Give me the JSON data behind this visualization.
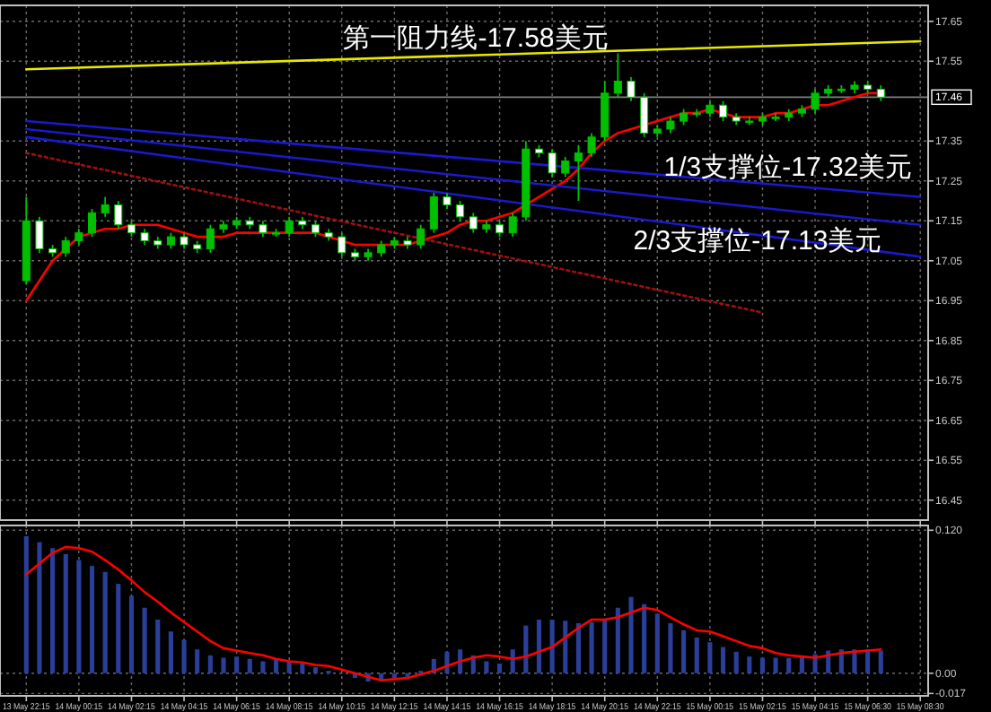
{
  "chart_data": [
    {
      "type": "candlestick",
      "categories": [
        "13 May 22:15",
        null,
        null,
        null,
        "14 May 00:15",
        null,
        null,
        null,
        "14 May 02:15",
        null,
        null,
        null,
        "14 May 04:15",
        null,
        null,
        null,
        "14 May 06:15",
        null,
        null,
        null,
        "14 May 08:15",
        null,
        null,
        null,
        "14 May 10:15",
        null,
        null,
        null,
        "14 May 12:15",
        null,
        null,
        null,
        "14 May 14:15",
        null,
        null,
        null,
        "14 May 16:15",
        null,
        null,
        null,
        "14 May 18:15",
        null,
        null,
        null,
        "14 May 20:15",
        null,
        null,
        null,
        "14 May 22:15",
        null,
        null,
        null,
        "15 May 00:15",
        null,
        null,
        null,
        "15 May 02:15",
        null,
        null,
        null,
        "15 May 04:15",
        null,
        null,
        null,
        "15 May 06:30",
        null,
        null,
        null,
        "15 May 08:30"
      ],
      "ohlc": [
        [
          17.0,
          17.21,
          16.99,
          17.15
        ],
        [
          17.15,
          17.16,
          17.07,
          17.08
        ],
        [
          17.08,
          17.09,
          17.06,
          17.07
        ],
        [
          17.07,
          17.11,
          17.06,
          17.1
        ],
        [
          17.1,
          17.13,
          17.09,
          17.12
        ],
        [
          17.12,
          17.18,
          17.11,
          17.17
        ],
        [
          17.17,
          17.21,
          17.16,
          17.19
        ],
        [
          17.19,
          17.2,
          17.13,
          17.14
        ],
        [
          17.14,
          17.15,
          17.11,
          17.12
        ],
        [
          17.12,
          17.13,
          17.09,
          17.1
        ],
        [
          17.1,
          17.11,
          17.08,
          17.09
        ],
        [
          17.09,
          17.12,
          17.08,
          17.11
        ],
        [
          17.11,
          17.12,
          17.08,
          17.09
        ],
        [
          17.09,
          17.1,
          17.07,
          17.08
        ],
        [
          17.08,
          17.14,
          17.07,
          17.13
        ],
        [
          17.13,
          17.15,
          17.12,
          17.14
        ],
        [
          17.14,
          17.16,
          17.13,
          17.15
        ],
        [
          17.15,
          17.16,
          17.13,
          17.14
        ],
        [
          17.14,
          17.15,
          17.11,
          17.12
        ],
        [
          17.12,
          17.13,
          17.11,
          17.12
        ],
        [
          17.12,
          17.16,
          17.11,
          17.15
        ],
        [
          17.15,
          17.16,
          17.13,
          17.14
        ],
        [
          17.14,
          17.15,
          17.11,
          17.12
        ],
        [
          17.12,
          17.13,
          17.1,
          17.11
        ],
        [
          17.11,
          17.12,
          17.06,
          17.07
        ],
        [
          17.07,
          17.08,
          17.05,
          17.06
        ],
        [
          17.06,
          17.08,
          17.05,
          17.07
        ],
        [
          17.07,
          17.1,
          17.06,
          17.09
        ],
        [
          17.09,
          17.11,
          17.08,
          17.1
        ],
        [
          17.1,
          17.11,
          17.08,
          17.09
        ],
        [
          17.09,
          17.14,
          17.08,
          17.13
        ],
        [
          17.13,
          17.22,
          17.12,
          17.21
        ],
        [
          17.21,
          17.22,
          17.18,
          17.19
        ],
        [
          17.19,
          17.2,
          17.15,
          17.16
        ],
        [
          17.16,
          17.17,
          17.12,
          17.13
        ],
        [
          17.13,
          17.15,
          17.12,
          17.14
        ],
        [
          17.14,
          17.15,
          17.11,
          17.12
        ],
        [
          17.12,
          17.17,
          17.11,
          17.16
        ],
        [
          17.16,
          17.35,
          17.15,
          17.33
        ],
        [
          17.33,
          17.34,
          17.31,
          17.32
        ],
        [
          17.32,
          17.33,
          17.26,
          17.27
        ],
        [
          17.27,
          17.31,
          17.26,
          17.3
        ],
        [
          17.3,
          17.34,
          17.2,
          17.32
        ],
        [
          17.32,
          17.37,
          17.31,
          17.36
        ],
        [
          17.36,
          17.5,
          17.35,
          17.47
        ],
        [
          17.47,
          17.57,
          17.46,
          17.5
        ],
        [
          17.5,
          17.51,
          17.45,
          17.46
        ],
        [
          17.46,
          17.47,
          17.36,
          17.37
        ],
        [
          17.37,
          17.39,
          17.36,
          17.38
        ],
        [
          17.38,
          17.41,
          17.37,
          17.4
        ],
        [
          17.4,
          17.43,
          17.39,
          17.42
        ],
        [
          17.42,
          17.43,
          17.41,
          17.42
        ],
        [
          17.42,
          17.45,
          17.41,
          17.44
        ],
        [
          17.44,
          17.45,
          17.4,
          17.41
        ],
        [
          17.41,
          17.42,
          17.39,
          17.4
        ],
        [
          17.4,
          17.41,
          17.39,
          17.4
        ],
        [
          17.4,
          17.42,
          17.39,
          17.41
        ],
        [
          17.41,
          17.42,
          17.4,
          17.41
        ],
        [
          17.41,
          17.43,
          17.4,
          17.42
        ],
        [
          17.42,
          17.44,
          17.41,
          17.43
        ],
        [
          17.43,
          17.48,
          17.42,
          17.47
        ],
        [
          17.47,
          17.49,
          17.46,
          17.48
        ],
        [
          17.48,
          17.49,
          17.47,
          17.48
        ],
        [
          17.48,
          17.5,
          17.47,
          17.49
        ],
        [
          17.49,
          17.5,
          17.47,
          17.48
        ],
        [
          17.48,
          17.49,
          17.45,
          17.46
        ],
        null,
        null,
        null
      ],
      "colors": [
        "#00c000",
        "#ffffff",
        "#ffffff",
        "#00c000",
        "#00c000",
        "#00c000",
        "#00c000",
        "#ffffff",
        "#ffffff",
        "#ffffff",
        "#ffffff",
        "#00c000",
        "#ffffff",
        "#ffffff",
        "#00c000",
        "#00c000",
        "#00c000",
        "#ffffff",
        "#ffffff",
        "#00c000",
        "#00c000",
        "#ffffff",
        "#ffffff",
        "#ffffff",
        "#ffffff",
        "#ffffff",
        "#00c000",
        "#00c000",
        "#00c000",
        "#ffffff",
        "#00c000",
        "#00c000",
        "#ffffff",
        "#ffffff",
        "#ffffff",
        "#00c000",
        "#ffffff",
        "#00c000",
        "#00c000",
        "#ffffff",
        "#ffffff",
        "#00c000",
        "#00c000",
        "#00c000",
        "#00c000",
        "#00c000",
        "#ffffff",
        "#ffffff",
        "#00c000",
        "#00c000",
        "#00c000",
        "#00c000",
        "#00c000",
        "#ffffff",
        "#ffffff",
        "#00c000",
        "#00c000",
        "#00c000",
        "#00c000",
        "#00c000",
        "#00c000",
        "#00c000",
        "#00c000",
        "#00c000",
        "#ffffff",
        "#ffffff",
        null,
        null,
        null
      ],
      "series": [
        {
          "type": "line",
          "color": "#ff0000",
          "values": [
            16.95,
            17.0,
            17.05,
            17.08,
            17.11,
            17.12,
            17.13,
            17.13,
            17.14,
            17.14,
            17.14,
            17.13,
            17.12,
            17.11,
            17.11,
            17.11,
            17.12,
            17.12,
            17.12,
            17.12,
            17.12,
            17.12,
            17.12,
            17.11,
            17.1,
            17.09,
            17.09,
            17.09,
            17.09,
            17.09,
            17.1,
            17.11,
            17.12,
            17.14,
            17.15,
            17.15,
            17.16,
            17.17,
            17.19,
            17.21,
            17.23,
            17.25,
            17.28,
            17.32,
            17.35,
            17.37,
            17.38,
            17.39,
            17.4,
            17.41,
            17.42,
            17.42,
            17.43,
            17.42,
            17.41,
            17.41,
            17.41,
            17.42,
            17.42,
            17.43,
            17.44,
            17.44,
            17.45,
            17.46,
            17.47,
            17.47,
            null,
            null,
            null
          ]
        },
        {
          "type": "line",
          "color": "#e8e800",
          "x": [
            "13 May 22:15",
            "15 May 08:30"
          ],
          "values": [
            17.53,
            17.6
          ]
        },
        {
          "type": "line",
          "color": "#1a1acc",
          "x": [
            "13 May 22:15",
            "15 May 08:30"
          ],
          "values": [
            17.4,
            17.21
          ]
        },
        {
          "type": "line",
          "color": "#1a1acc",
          "x": [
            "13 May 22:15",
            "15 May 08:30"
          ],
          "values": [
            17.38,
            17.14
          ]
        },
        {
          "type": "line",
          "color": "#1a1acc",
          "x": [
            "13 May 22:15",
            "15 May 08:30"
          ],
          "values": [
            17.36,
            17.06
          ]
        },
        {
          "type": "line",
          "color": "#a01010",
          "line_style": "dotted",
          "x": [
            "13 May 22:15",
            "15 May 02:15"
          ],
          "values": [
            17.32,
            16.92
          ]
        }
      ],
      "ref_lines": [
        {
          "axis": "y",
          "value": 17.46,
          "label": "17.46",
          "color": "#808080"
        }
      ],
      "annotations": [
        "第一阻力线-17.58美元",
        "1/3支撑位-17.32美元",
        "2/3支撑位-17.13美元"
      ],
      "ylim": [
        16.4,
        17.69
      ],
      "yticks": [
        17.65,
        17.55,
        17.35,
        17.25,
        17.15,
        17.05,
        16.95,
        16.85,
        16.75,
        16.65,
        16.55,
        16.45
      ],
      "tick_labels": "y",
      "grid": true
    },
    {
      "type": "bar",
      "categories": [
        "13 May 22:15",
        null,
        null,
        null,
        "14 May 00:15",
        null,
        null,
        null,
        "14 May 02:15",
        null,
        null,
        null,
        "14 May 04:15",
        null,
        null,
        null,
        "14 May 06:15",
        null,
        null,
        null,
        "14 May 08:15",
        null,
        null,
        null,
        "14 May 10:15",
        null,
        null,
        null,
        "14 May 12:15",
        null,
        null,
        null,
        "14 May 14:15",
        null,
        null,
        null,
        "14 May 16:15",
        null,
        null,
        null,
        "14 May 18:15",
        null,
        null,
        null,
        "14 May 20:15",
        null,
        null,
        null,
        "14 May 22:15",
        null,
        null,
        null,
        "15 May 00:15",
        null,
        null,
        null,
        "15 May 02:15",
        null,
        null,
        null,
        "15 May 04:15",
        null,
        null,
        null,
        "15 May 06:30",
        null,
        null,
        null,
        "15 May 08:30"
      ],
      "series": [
        {
          "type": "bar",
          "color": "#2a3f9a",
          "values": [
            0.115,
            0.11,
            0.105,
            0.1,
            0.095,
            0.09,
            0.085,
            0.075,
            0.065,
            0.055,
            0.045,
            0.035,
            0.028,
            0.02,
            0.015,
            0.013,
            0.014,
            0.012,
            0.01,
            0.012,
            0.01,
            0.008,
            0.005,
            0.002,
            0.0,
            -0.004,
            -0.007,
            -0.006,
            -0.004,
            -0.003,
            0.002,
            0.012,
            0.018,
            0.02,
            0.015,
            0.01,
            0.008,
            0.02,
            0.04,
            0.045,
            0.045,
            0.044,
            0.042,
            0.043,
            0.045,
            0.055,
            0.064,
            0.058,
            0.05,
            0.042,
            0.036,
            0.03,
            0.026,
            0.022,
            0.018,
            0.014,
            0.013,
            0.013,
            0.013,
            0.014,
            0.016,
            0.019,
            0.02,
            0.02,
            0.02,
            0.019,
            null,
            null,
            null
          ]
        },
        {
          "type": "line",
          "color": "#ff0000",
          "values": [
            0.083,
            0.092,
            0.101,
            0.106,
            0.105,
            0.102,
            0.095,
            0.087,
            0.078,
            0.068,
            0.06,
            0.051,
            0.043,
            0.035,
            0.027,
            0.021,
            0.019,
            0.017,
            0.015,
            0.012,
            0.01,
            0.009,
            0.007,
            0.006,
            0.003,
            0.0,
            -0.003,
            -0.006,
            -0.005,
            -0.004,
            -0.001,
            0.002,
            0.006,
            0.01,
            0.013,
            0.015,
            0.014,
            0.012,
            0.014,
            0.018,
            0.022,
            0.03,
            0.038,
            0.045,
            0.045,
            0.047,
            0.051,
            0.055,
            0.053,
            0.047,
            0.041,
            0.036,
            0.035,
            0.031,
            0.027,
            0.023,
            0.021,
            0.017,
            0.015,
            0.014,
            0.013,
            0.015,
            0.017,
            0.018,
            0.019,
            0.02,
            null,
            null,
            null
          ]
        }
      ],
      "ylim": [
        -0.019,
        0.124
      ],
      "yticks": [
        {
          "value": 0.12,
          "label": "0.120"
        },
        {
          "value": 0,
          "label": "0.00"
        },
        -0.017
      ],
      "grid": true
    }
  ]
}
